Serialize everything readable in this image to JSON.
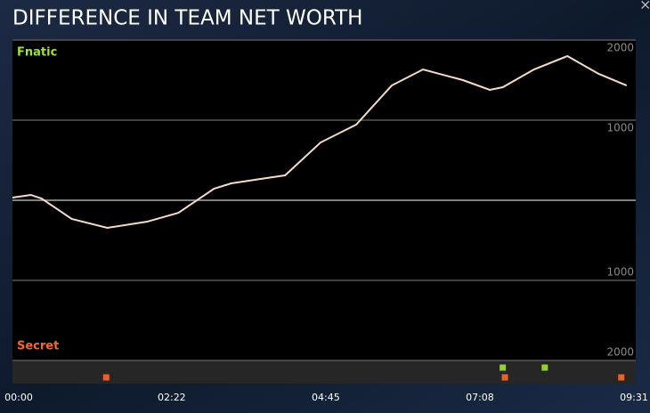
{
  "chart_data": {
    "type": "line",
    "title": "DIFFERENCE IN TEAM NET WORTH",
    "top_label": "Fnatic",
    "top_color": "#9ee23c",
    "bottom_label": "Secret",
    "bottom_color": "#ee6a2e",
    "x": [
      0,
      17,
      27,
      55,
      88,
      125,
      154,
      187,
      203,
      236,
      253,
      286,
      319,
      352,
      381,
      418,
      443,
      455,
      484,
      515,
      544,
      570
    ],
    "series": [
      {
        "color": "#f6dcc8",
        "values": [
          33,
          67,
          22,
          -233,
          -344,
          -267,
          -156,
          144,
          211,
          278,
          311,
          722,
          944,
          1433,
          1633,
          1500,
          1378,
          1411,
          1633,
          1800,
          1578,
          1433
        ]
      }
    ],
    "xlim": [
      0,
      571
    ],
    "xticks": [
      {
        "value": 0,
        "label": "00:00"
      },
      {
        "value": 142,
        "label": "02:22"
      },
      {
        "value": 285,
        "label": "04:45"
      },
      {
        "value": 428,
        "label": "07:08"
      },
      {
        "value": 571,
        "label": "09:31"
      }
    ],
    "ylim": [
      -2000,
      2000
    ],
    "yticks": [
      2000,
      1000,
      {
        "value": -1000,
        "label": "1000"
      },
      {
        "value": -2000,
        "label": "2000"
      }
    ],
    "grid": true,
    "events": [
      {
        "color": "#8fd12f",
        "x": [
          455,
          494
        ]
      },
      {
        "color": "#e8602c",
        "x": [
          87,
          457,
          565
        ]
      }
    ]
  }
}
